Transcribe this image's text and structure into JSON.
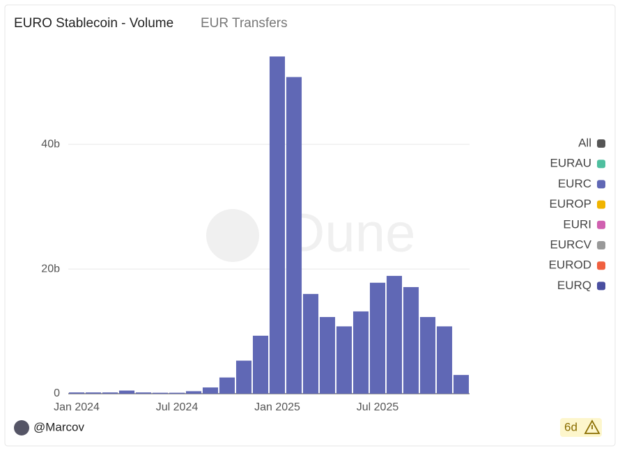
{
  "header": {
    "title": "EURO Stablecoin - Volume",
    "subtitle": "EUR Transfers"
  },
  "watermark": "Dune",
  "footer": {
    "author": "@Marcov",
    "age": "6d"
  },
  "chart_data": {
    "type": "bar",
    "categories": [
      "Jan 2024",
      null,
      null,
      null,
      null,
      null,
      "Jul 2024",
      null,
      null,
      null,
      null,
      null,
      "Jan 2025",
      null,
      null,
      null,
      null,
      null,
      "Jul 2025",
      null,
      null,
      null,
      null,
      null
    ],
    "series": [
      {
        "name": "All",
        "color": "#555555"
      },
      {
        "name": "EURAU",
        "color": "#4fbf9f"
      },
      {
        "name": "EURC",
        "color": "#6068b5",
        "values": [
          0.2,
          0.2,
          0.2,
          0.5,
          0.2,
          0.15,
          0.15,
          0.4,
          1.0,
          2.6,
          5.3,
          9.3,
          54.1,
          50.8,
          16.0,
          12.3,
          10.8,
          13.2,
          17.8,
          18.9,
          17.1,
          12.3,
          10.8,
          3.0
        ]
      },
      {
        "name": "EUROP",
        "color": "#f0b400"
      },
      {
        "name": "EURI",
        "color": "#d060b0"
      },
      {
        "name": "EURCV",
        "color": "#999999"
      },
      {
        "name": "EUROD",
        "color": "#f06040"
      },
      {
        "name": "EURQ",
        "color": "#4a4fa0"
      }
    ],
    "ylim": [
      0,
      55
    ],
    "yticks": [
      0,
      {
        "value": 20,
        "label": "20b"
      },
      {
        "value": 40,
        "label": "40b"
      }
    ],
    "grid": true
  }
}
